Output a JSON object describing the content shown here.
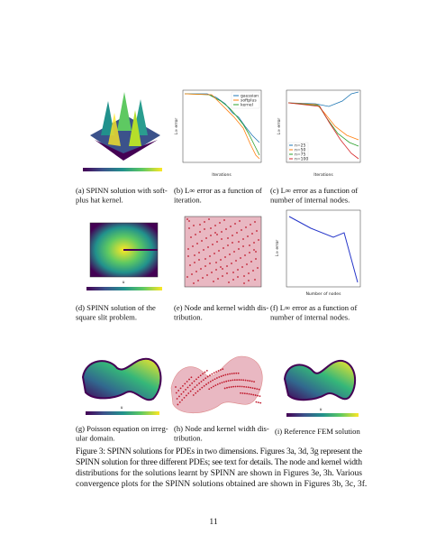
{
  "subfigures": [
    {
      "caption": [
        "(a) SPINN solution with soft-",
        "plus hat kernel."
      ]
    },
    {
      "caption": [
        "(b) L∞ error as a function of",
        "iteration."
      ],
      "x_label": "Iterations",
      "y_label": "L∞ error",
      "legend": [
        "gaussian",
        "softplus",
        "kernel"
      ]
    },
    {
      "caption": [
        "(c) L∞ error as a function of",
        "number of internal nodes."
      ],
      "x_label": "Iterations",
      "y_label": "L∞ error",
      "legend": [
        "n=25",
        "n=50",
        "n=75",
        "n=100"
      ]
    },
    {
      "caption": [
        "(d) SPINN solution of the",
        "square slit problem."
      ],
      "colorbar_label": "u"
    },
    {
      "caption": [
        "(e) Node and kernel width dis-",
        "tribution."
      ]
    },
    {
      "caption": [
        "(f) L∞ error as a function of",
        "number of internal nodes."
      ],
      "x_label": "Number of nodes",
      "y_label": "L∞ error"
    },
    {
      "caption": [
        "(g) Poisson equation on irreg-",
        "ular domain."
      ],
      "colorbar_label": "u"
    },
    {
      "caption": [
        "(h) Node and kernel width dis-",
        "tribution."
      ]
    },
    {
      "caption": [
        "(i) Reference FEM solution"
      ],
      "colorbar_label": "u"
    }
  ],
  "figure_caption": [
    "Figure 3: SPINN solutions for PDEs in two dimensions. Figures 3a, 3d, 3g represent the",
    "SPINN solution for three different PDEs; see text for details. The node and kernel width",
    "distributions for the solutions learnt by SPINN are shown in Figures 3e, 3h. Various",
    "convergence plots for the SPINN solutions obtained are shown in Figures 3b, 3c, 3f."
  ],
  "page_number": "11"
}
